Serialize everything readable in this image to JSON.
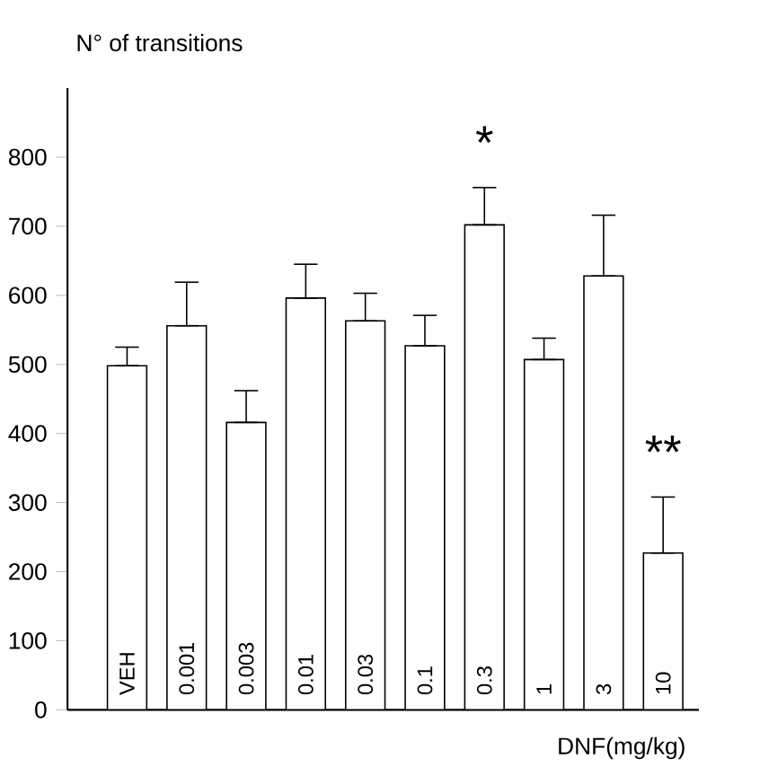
{
  "chart_data": {
    "type": "bar",
    "ylabel": "N° of transitions",
    "xlabel": "DNF(mg/kg)",
    "categories": [
      "VEH",
      "0.001",
      "0.003",
      "0.01",
      "0.03",
      "0.1",
      "0.3",
      "1",
      "3",
      "10"
    ],
    "values": [
      498,
      556,
      416,
      596,
      563,
      527,
      702,
      507,
      628,
      227
    ],
    "errors": [
      [
        498,
        525
      ],
      [
        556,
        619
      ],
      [
        416,
        462
      ],
      [
        596,
        645
      ],
      [
        563,
        603
      ],
      [
        527,
        571
      ],
      [
        702,
        756
      ],
      [
        507,
        538
      ],
      [
        628,
        716
      ],
      [
        227,
        308
      ]
    ],
    "color": "#ffffff",
    "ylim": [
      0,
      900
    ],
    "yticks": [
      0,
      100,
      200,
      300,
      400,
      500,
      600,
      700,
      800
    ],
    "annotations": [
      {
        "text": "*",
        "x": "0.3",
        "y": 756
      },
      {
        "text": "**",
        "x": "10",
        "y": 308
      }
    ],
    "grid": false
  }
}
